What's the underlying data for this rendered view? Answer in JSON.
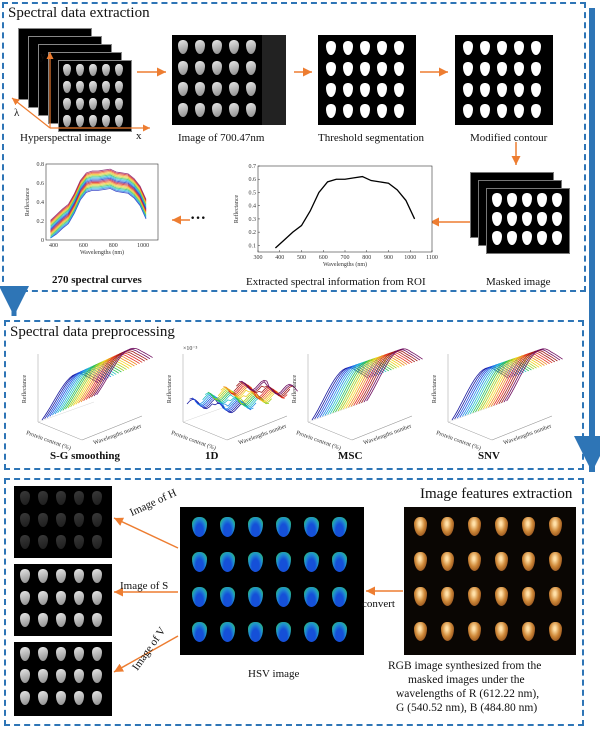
{
  "section1": {
    "title": "Spectral data extraction",
    "labels": {
      "hyperspectral": "Hyperspectral image",
      "image700": "Image of 700.47nm",
      "threshold": "Threshold segmentation",
      "modified": "Modified contour",
      "masked": "Masked image",
      "extracted": "Extracted spectral  information from ROI",
      "curves": "270 spectral curves",
      "lambda": "λ",
      "y": "y",
      "x": "x",
      "ellipsis": "···"
    },
    "spec_chart": {
      "ylabel": "Reflectance",
      "xlabel": "Wavelengths (nm)",
      "yticks": [
        "0.1",
        "0.2",
        "0.3",
        "0.4",
        "0.5",
        "0.6",
        "0.7"
      ],
      "xticks": [
        "300",
        "400",
        "500",
        "600",
        "700",
        "800",
        "900",
        "1000",
        "1100"
      ]
    },
    "curves_chart": {
      "ylabel": "Reflectance",
      "xlabel": "Wavelengths (nm)",
      "yticks": [
        "0",
        "0.2",
        "0.4",
        "0.6",
        "0.8"
      ],
      "xticks": [
        "400",
        "600",
        "800",
        "1000"
      ]
    }
  },
  "section2": {
    "title": "Spectral data preprocessing",
    "plots": [
      {
        "label": "S-G smoothing",
        "ylabel": "Reflectance",
        "x1": "Protein content (%)",
        "x2": "Wavelengths number",
        "exp": ""
      },
      {
        "label": "1D",
        "ylabel": "Reflectance",
        "x1": "Protein content (%)",
        "x2": "Wavelengths number",
        "exp": "×10⁻³"
      },
      {
        "label": "MSC",
        "ylabel": "Reflectance",
        "x1": "Protein content (%)",
        "x2": "Wavelengths number",
        "exp": ""
      },
      {
        "label": "SNV",
        "ylabel": "Reflectance",
        "x1": "Protein content (%)",
        "x2": "Wavelengths number",
        "exp": ""
      }
    ]
  },
  "section3": {
    "title": "Image features extraction",
    "image_h": "Image of H",
    "image_s": "Image of S",
    "image_v": "Image of V",
    "hsv": "HSV image",
    "convert": "convert",
    "rgb_caption": [
      "RGB image synthesized from the",
      "masked images under the",
      "wavelengths of R (612.22 nm),",
      "G (540.52 nm), B (484.80 nm)"
    ]
  },
  "chart_data": {
    "type": "line",
    "title": "",
    "xlabel": "Wavelengths (nm)",
    "ylabel": "Reflectance",
    "x": [
      380,
      420,
      460,
      500,
      540,
      580,
      620,
      660,
      700,
      740,
      780,
      820,
      860,
      900,
      940,
      980,
      1020
    ],
    "y": [
      0.08,
      0.14,
      0.2,
      0.25,
      0.36,
      0.5,
      0.58,
      0.6,
      0.6,
      0.61,
      0.62,
      0.59,
      0.58,
      0.57,
      0.52,
      0.44,
      0.3
    ],
    "xlim": [
      300,
      1100
    ],
    "ylim": [
      0.05,
      0.7
    ]
  },
  "colors": {
    "accent": "#2e75b6",
    "arrow": "#ed7d31"
  }
}
